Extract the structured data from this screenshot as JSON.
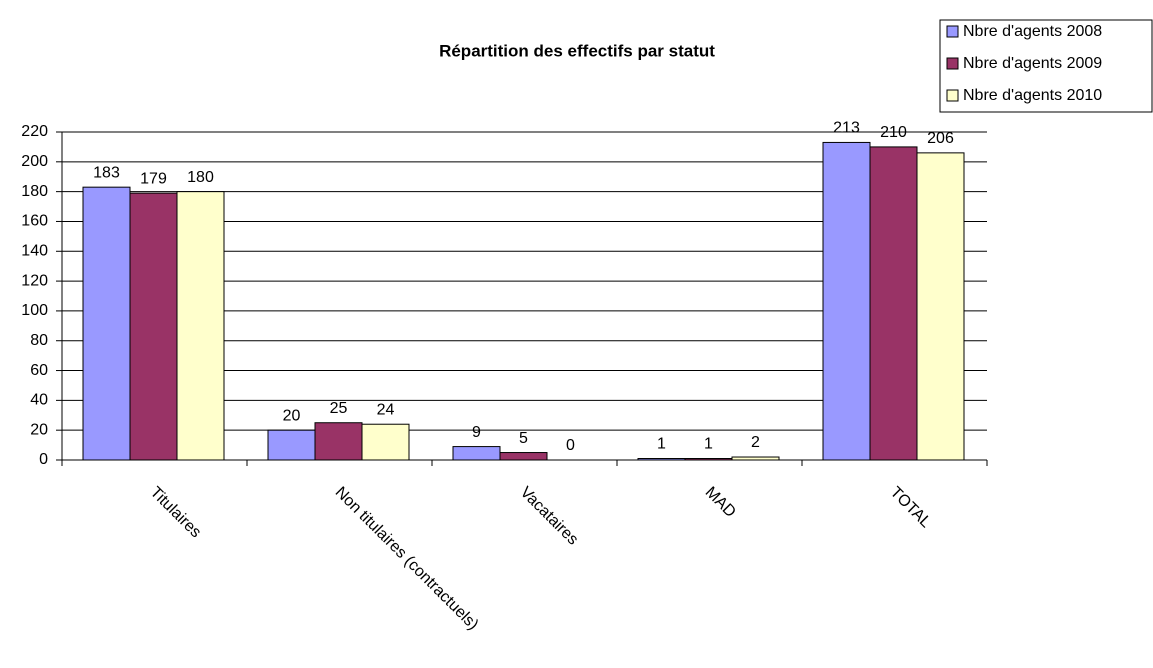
{
  "chart_data": {
    "type": "bar",
    "title": "Répartition des effectifs par statut",
    "categories": [
      "Titulaires",
      "Non titulaires (contractuels)",
      "Vacataires",
      "MAD",
      "TOTAL"
    ],
    "series": [
      {
        "name": "Nbre d'agents 2008",
        "color": "#9999ff",
        "values": [
          183,
          20,
          9,
          1,
          213
        ]
      },
      {
        "name": "Nbre d'agents 2009",
        "color": "#993366",
        "values": [
          179,
          25,
          5,
          1,
          210
        ]
      },
      {
        "name": "Nbre d'agents 2010",
        "color": "#ffffcc",
        "values": [
          180,
          24,
          0,
          2,
          206
        ]
      }
    ],
    "ylim": [
      0,
      220
    ],
    "yticks": [
      0,
      20,
      40,
      60,
      80,
      100,
      120,
      140,
      160,
      180,
      200,
      220
    ],
    "grid": true,
    "legend": "top-right"
  }
}
